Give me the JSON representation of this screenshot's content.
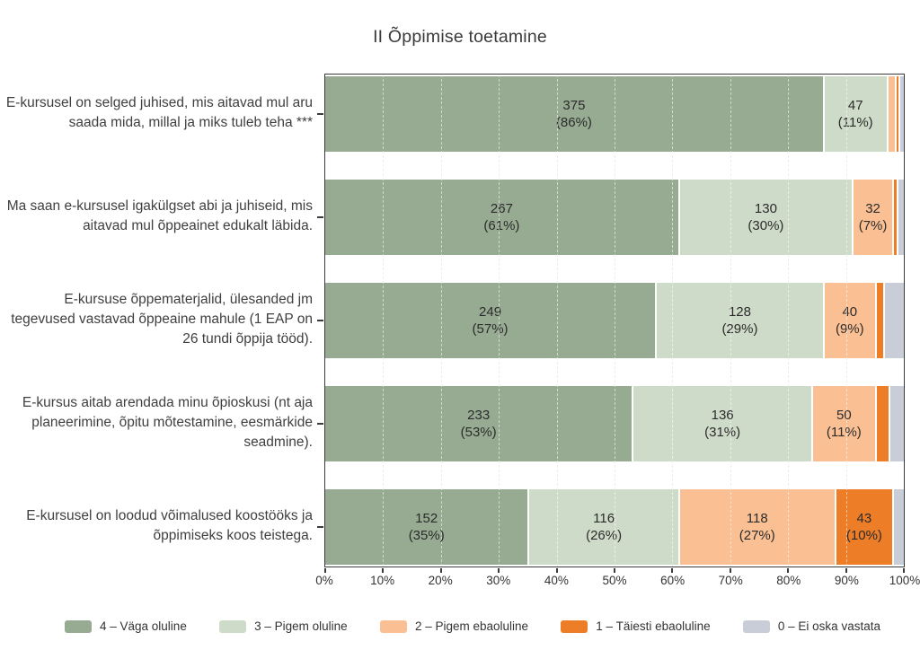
{
  "title": "II Õppimise toetamine",
  "colors": {
    "very_important": "#96ab92",
    "rather_important": "#cfdbc9",
    "rather_unimportant": "#fac094",
    "not_important": "#ee7d28",
    "no_answer": "#c8cdd8",
    "axis": "#3b3b3b",
    "grid": "#d9d9d9",
    "text": "#2b2b2b"
  },
  "legend": [
    {
      "key": "very_important",
      "label": "4 – Väga oluline"
    },
    {
      "key": "rather_important",
      "label": "3 – Pigem oluline"
    },
    {
      "key": "rather_unimportant",
      "label": "2 – Pigem ebaoluline"
    },
    {
      "key": "not_important",
      "label": "1 – Täiesti ebaoluline"
    },
    {
      "key": "no_answer",
      "label": "0 – Ei oska vastata"
    }
  ],
  "chart_data": {
    "type": "bar",
    "variant": "horizontal-stacked-100pct",
    "title": "II Õppimise toetamine",
    "xlim": [
      0,
      100
    ],
    "x_tick_labels": [
      "0%",
      "10%",
      "20%",
      "30%",
      "40%",
      "50%",
      "60%",
      "70%",
      "80%",
      "90%",
      "100%"
    ],
    "grid": "dashed-vertical",
    "legend_position": "bottom",
    "rows": [
      {
        "label": "E-kursusel on selged juhised, mis aitavad mul aru saada mida, millal ja miks tuleb teha ***",
        "segments": [
          {
            "key": "very_important",
            "value": 375,
            "pct": 86
          },
          {
            "key": "rather_important",
            "value": 47,
            "pct": 11
          },
          {
            "key": "rather_unimportant",
            "pct": 1.4
          },
          {
            "key": "not_important",
            "pct": 0.6
          },
          {
            "key": "no_answer",
            "pct": 1.0
          }
        ]
      },
      {
        "label": "Ma saan e-kursusel igakülgset abi ja juhiseid, mis aitavad mul õppeainet edukalt läbida.",
        "segments": [
          {
            "key": "very_important",
            "value": 267,
            "pct": 61
          },
          {
            "key": "rather_important",
            "value": 130,
            "pct": 30
          },
          {
            "key": "rather_unimportant",
            "value": 32,
            "pct": 7
          },
          {
            "key": "not_important",
            "pct": 0.8
          },
          {
            "key": "no_answer",
            "pct": 1.2
          }
        ]
      },
      {
        "label": "E-kursuse õppematerjalid, ülesanded jm tegevused vastavad õppeaine mahule (1 EAP on 26 tundi õppija tööd).",
        "segments": [
          {
            "key": "very_important",
            "value": 249,
            "pct": 57
          },
          {
            "key": "rather_important",
            "value": 128,
            "pct": 29
          },
          {
            "key": "rather_unimportant",
            "value": 40,
            "pct": 9
          },
          {
            "key": "not_important",
            "pct": 1.4
          },
          {
            "key": "no_answer",
            "pct": 3.6
          }
        ]
      },
      {
        "label": "E-kursus aitab arendada minu õpioskusi (nt aja planeerimine, õpitu mõtestamine, eesmärkide seadmine).",
        "segments": [
          {
            "key": "very_important",
            "value": 233,
            "pct": 53
          },
          {
            "key": "rather_important",
            "value": 136,
            "pct": 31
          },
          {
            "key": "rather_unimportant",
            "value": 50,
            "pct": 11
          },
          {
            "key": "not_important",
            "pct": 2.4
          },
          {
            "key": "no_answer",
            "pct": 2.6
          }
        ]
      },
      {
        "label": "E-kursusel on loodud võimalused koostööks ja õppimiseks koos teistega.",
        "segments": [
          {
            "key": "very_important",
            "value": 152,
            "pct": 35
          },
          {
            "key": "rather_important",
            "value": 116,
            "pct": 26
          },
          {
            "key": "rather_unimportant",
            "value": 118,
            "pct": 27
          },
          {
            "key": "not_important",
            "value": 43,
            "pct": 10
          },
          {
            "key": "no_answer",
            "pct": 2.0
          }
        ]
      }
    ]
  }
}
